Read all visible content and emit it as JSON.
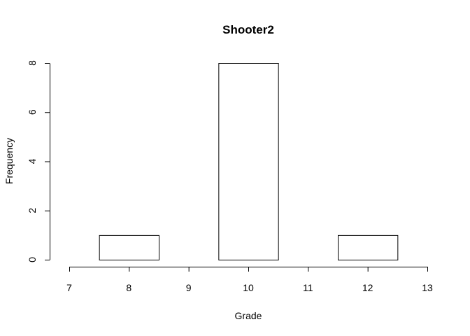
{
  "chart_data": {
    "type": "bar",
    "title": "Shooter2",
    "xlabel": "Grade",
    "ylabel": "Frequency",
    "bins": [
      {
        "from": 7.5,
        "to": 8.5,
        "count": 1
      },
      {
        "from": 8.5,
        "to": 9.5,
        "count": 0
      },
      {
        "from": 9.5,
        "to": 10.5,
        "count": 8
      },
      {
        "from": 10.5,
        "to": 11.5,
        "count": 0
      },
      {
        "from": 11.5,
        "to": 12.5,
        "count": 1
      }
    ],
    "xlim": [
      7,
      13
    ],
    "ylim": [
      0,
      8
    ],
    "x_ticks": [
      7,
      8,
      9,
      10,
      11,
      12,
      13
    ],
    "y_ticks": [
      0,
      2,
      4,
      6,
      8
    ],
    "grid": false,
    "legend": false
  }
}
